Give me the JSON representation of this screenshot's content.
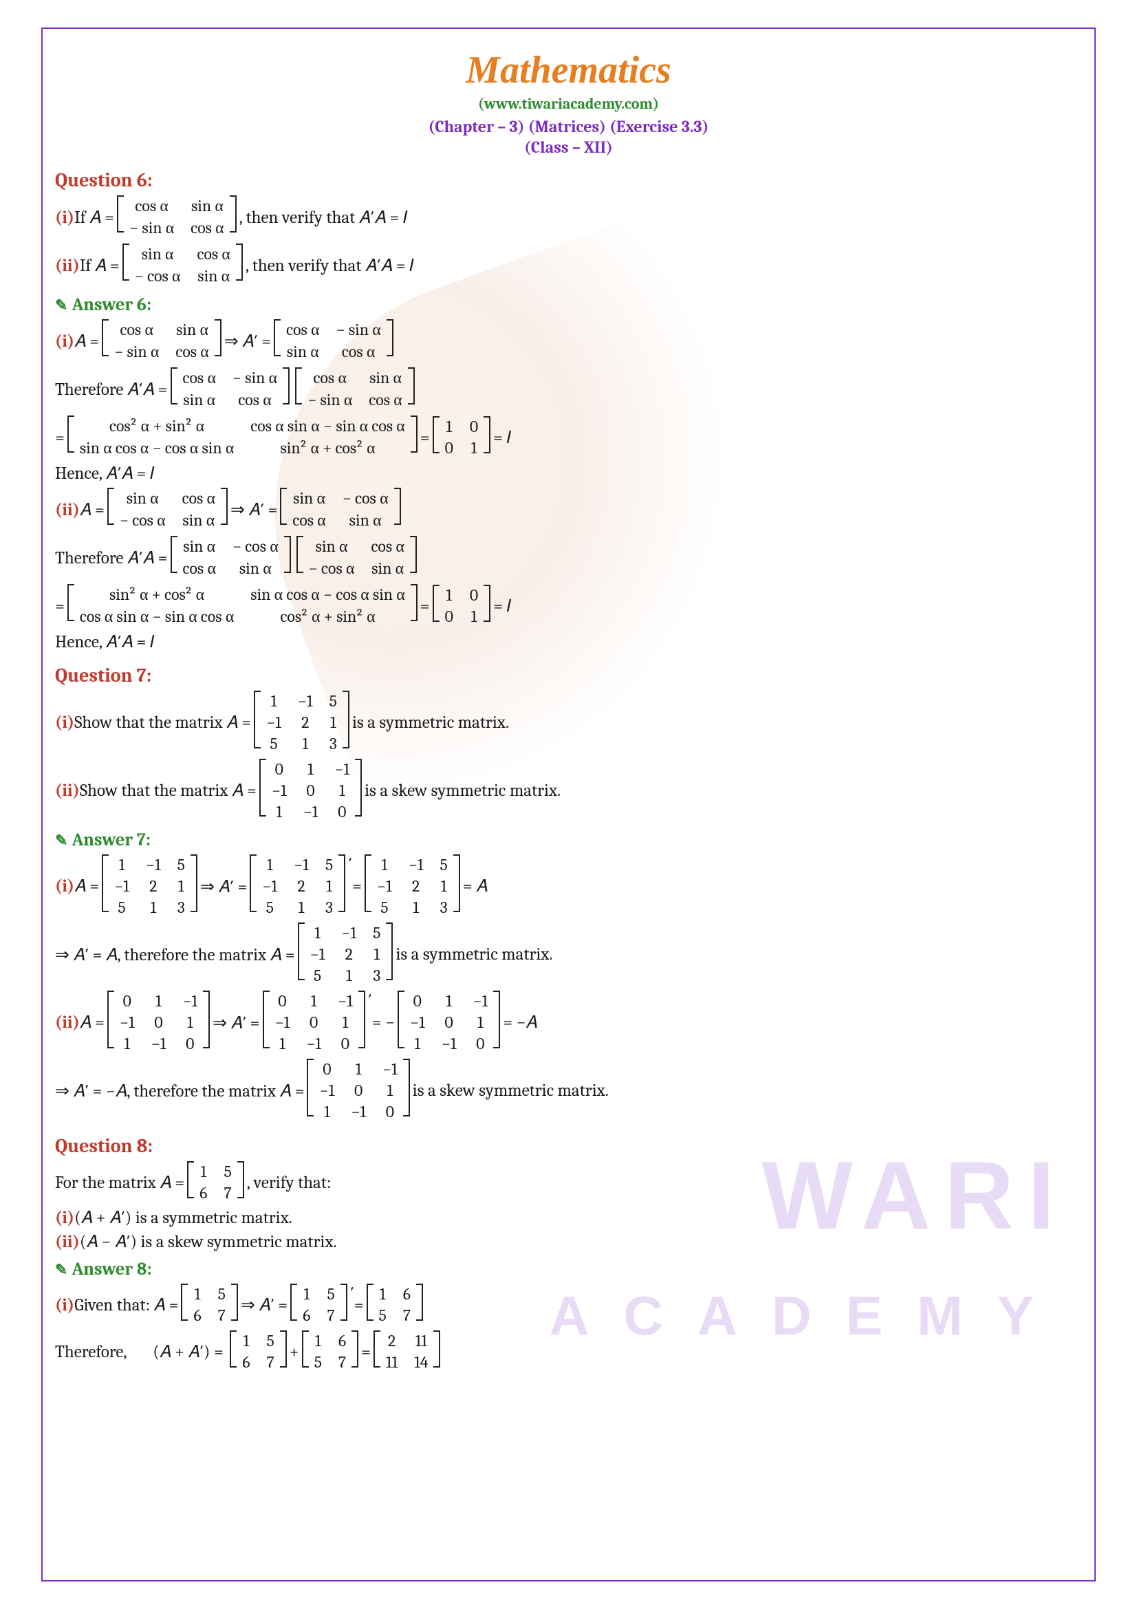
{
  "header": {
    "title": "Mathematics",
    "subtitle": "(www.tiwariacademy.com)",
    "chapter": "(Chapter – 3) (Matrices) (Exercise 3.3)",
    "class": "(Class – XII)"
  },
  "watermark": {
    "text1": "WARI",
    "text2": "ACADEMY",
    "leaf_color": "#e8a87c"
  },
  "colors": {
    "title": "#e67e22",
    "subtitle": "#2e8b2e",
    "chapter": "#7b2cbf",
    "question": "#c0392b",
    "answer": "#2e8b2e",
    "roman": "#c0392b",
    "border": "#7b2cbf",
    "text": "#1a1a1a"
  },
  "typography": {
    "title_fontsize": 56,
    "header_fontsize": 28,
    "body_fontsize": 25,
    "font_family": "Cambria"
  },
  "q6": {
    "header": "Question 6:",
    "i_text": "If 𝐴 = ",
    "i_matrix": [
      [
        "cos α",
        "sin α"
      ],
      [
        "− sin α",
        "cos α"
      ]
    ],
    "i_tail": ", then verify that 𝐴′𝐴 = 𝐼",
    "ii_text": "If 𝐴 = ",
    "ii_matrix": [
      [
        "sin α",
        "cos α"
      ],
      [
        "− cos α",
        "sin α"
      ]
    ],
    "ii_tail": ", then verify that 𝐴′𝐴 = 𝐼"
  },
  "a6": {
    "header": "Answer 6:",
    "i_a": [
      [
        "cos α",
        "sin α"
      ],
      [
        "− sin α",
        "cos α"
      ]
    ],
    "i_arrow": "  ⇒ 𝐴′ = ",
    "i_aprime": [
      [
        "cos α",
        "− sin α"
      ],
      [
        "sin α",
        "cos α"
      ]
    ],
    "i_therefore": "Therefore 𝐴′𝐴 = ",
    "i_prod1": [
      [
        "cos α",
        "− sin α"
      ],
      [
        "sin α",
        "cos α"
      ]
    ],
    "i_prod2": [
      [
        "cos α",
        "sin α"
      ],
      [
        "− sin α",
        "cos α"
      ]
    ],
    "i_result": [
      [
        "cos² α + sin² α",
        "cos α sin α − sin α cos α"
      ],
      [
        "sin α cos α − cos α sin α",
        "sin² α + cos² α"
      ]
    ],
    "i_identity": [
      [
        "1",
        "0"
      ],
      [
        "0",
        "1"
      ]
    ],
    "i_eq_i": " = 𝐼",
    "i_hence": "Hence, 𝐴′𝐴 = 𝐼",
    "ii_a": [
      [
        "sin α",
        "cos α"
      ],
      [
        "− cos α",
        "sin α"
      ]
    ],
    "ii_arrow": "  ⇒ 𝐴′ = ",
    "ii_aprime": [
      [
        "sin α",
        "− cos α"
      ],
      [
        "cos α",
        "sin α"
      ]
    ],
    "ii_therefore": "Therefore 𝐴′𝐴 = ",
    "ii_prod1": [
      [
        "sin α",
        "− cos α"
      ],
      [
        "cos α",
        "sin α"
      ]
    ],
    "ii_prod2": [
      [
        "sin α",
        "cos α"
      ],
      [
        "− cos α",
        "sin α"
      ]
    ],
    "ii_result": [
      [
        "sin² α + cos² α",
        "sin α cos α − cos α sin α"
      ],
      [
        "cos α sin α − sin α cos α",
        "cos² α + sin² α"
      ]
    ],
    "ii_identity": [
      [
        "1",
        "0"
      ],
      [
        "0",
        "1"
      ]
    ],
    "ii_eq_i": " = 𝐼",
    "ii_hence": "Hence, 𝐴′𝐴 = 𝐼"
  },
  "q7": {
    "header": "Question 7:",
    "i_text": "Show that the matrix 𝐴 = ",
    "i_matrix": [
      [
        "1",
        "−1",
        "5"
      ],
      [
        "−1",
        "2",
        "1"
      ],
      [
        "5",
        "1",
        "3"
      ]
    ],
    "i_tail": " is a symmetric matrix.",
    "ii_text": "Show that the matrix 𝐴 = ",
    "ii_matrix": [
      [
        "0",
        "1",
        "−1"
      ],
      [
        "−1",
        "0",
        "1"
      ],
      [
        "1",
        "−1",
        "0"
      ]
    ],
    "ii_tail": " is a skew symmetric matrix."
  },
  "a7": {
    "header": "Answer 7:",
    "i_a": [
      [
        "1",
        "−1",
        "5"
      ],
      [
        "−1",
        "2",
        "1"
      ],
      [
        "5",
        "1",
        "3"
      ]
    ],
    "i_arrow": "  ⇒ 𝐴′ = ",
    "i_at": [
      [
        "1",
        "−1",
        "5"
      ],
      [
        "−1",
        "2",
        "1"
      ],
      [
        "5",
        "1",
        "3"
      ]
    ],
    "i_prime": "′",
    "i_eq": " = ",
    "i_res": [
      [
        "1",
        "−1",
        "5"
      ],
      [
        "−1",
        "2",
        "1"
      ],
      [
        "5",
        "1",
        "3"
      ]
    ],
    "i_eqA": " = 𝐴",
    "i_concl": "⇒ 𝐴′ = 𝐴, therefore the matrix 𝐴 = ",
    "i_concl_tail": " is a symmetric matrix.",
    "ii_a": [
      [
        "0",
        "1",
        "−1"
      ],
      [
        "−1",
        "0",
        "1"
      ],
      [
        "1",
        "−1",
        "0"
      ]
    ],
    "ii_arrow": "  ⇒ 𝐴′ = ",
    "ii_at": [
      [
        "0",
        "1",
        "−1"
      ],
      [
        "−1",
        "0",
        "1"
      ],
      [
        "1",
        "−1",
        "0"
      ]
    ],
    "ii_eq": " = −",
    "ii_res": [
      [
        "0",
        "1",
        "−1"
      ],
      [
        "−1",
        "0",
        "1"
      ],
      [
        "1",
        "−1",
        "0"
      ]
    ],
    "ii_eqA": " = −𝐴",
    "ii_concl": "⇒ 𝐴′ = −𝐴, therefore the matrix 𝐴 = ",
    "ii_concl_tail": " is a skew symmetric matrix."
  },
  "q8": {
    "header": "Question 8:",
    "text": "For the matrix 𝐴 = ",
    "matrix": [
      [
        "1",
        "5"
      ],
      [
        "6",
        "7"
      ]
    ],
    "tail": ", verify that:",
    "i": "(𝐴 + 𝐴′)  is a symmetric matrix.",
    "ii": "(𝐴 − 𝐴′) is a skew symmetric matrix."
  },
  "a8": {
    "header": "Answer 8:",
    "i_given": "Given that: 𝐴 = ",
    "i_a": [
      [
        "1",
        "5"
      ],
      [
        "6",
        "7"
      ]
    ],
    "i_arrow": " ⇒ 𝐴′ = ",
    "i_at": [
      [
        "1",
        "5"
      ],
      [
        "6",
        "7"
      ]
    ],
    "i_prime": "′",
    "i_eq": " = ",
    "i_res": [
      [
        "1",
        "6"
      ],
      [
        "5",
        "7"
      ]
    ],
    "i_therefore": "Therefore,       (𝐴 + 𝐴′) = ",
    "i_sum1": [
      [
        "1",
        "5"
      ],
      [
        "6",
        "7"
      ]
    ],
    "i_plus": " + ",
    "i_sum2": [
      [
        "1",
        "6"
      ],
      [
        "5",
        "7"
      ]
    ],
    "i_sumeq": " = ",
    "i_sumres": [
      [
        "2",
        "11"
      ],
      [
        "11",
        "14"
      ]
    ]
  },
  "labels": {
    "i": "(i) ",
    "ii": "(ii) ",
    "eq": " = ",
    "A_eq": "𝐴 = "
  }
}
